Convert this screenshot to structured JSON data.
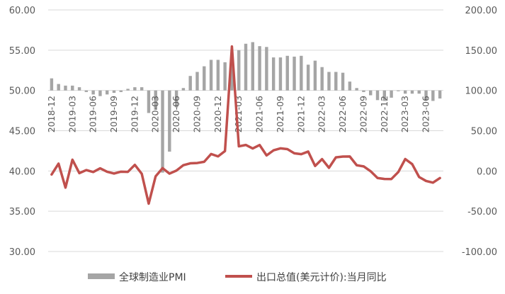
{
  "chart_data": {
    "type": "bar+line",
    "title": "",
    "left_axis": {
      "ylim": [
        30,
        60
      ],
      "ticks": [
        "30.00",
        "35.00",
        "40.00",
        "45.00",
        "50.00",
        "55.00",
        "60.00"
      ]
    },
    "right_axis": {
      "ylim": [
        -100,
        200
      ],
      "ticks": [
        "-100.00",
        "-50.00",
        "0.00",
        "50.00",
        "100.00",
        "150.00",
        "200.00"
      ]
    },
    "x_tick_labels": [
      "2018-12",
      "2019-03",
      "2019-06",
      "2019-09",
      "2019-12",
      "2020-03",
      "2020-06",
      "2020-09",
      "2020-12",
      "2021-03",
      "2021-06",
      "2021-09",
      "2021-12",
      "2022-03",
      "2022-06",
      "2022-09",
      "2022-12",
      "2023-03",
      "2023-06"
    ],
    "x": [
      "2018-12",
      "2019-01",
      "2019-02",
      "2019-03",
      "2019-04",
      "2019-05",
      "2019-06",
      "2019-07",
      "2019-08",
      "2019-09",
      "2019-10",
      "2019-11",
      "2019-12",
      "2020-01",
      "2020-02",
      "2020-03",
      "2020-04",
      "2020-05",
      "2020-06",
      "2020-07",
      "2020-08",
      "2020-09",
      "2020-10",
      "2020-11",
      "2020-12",
      "2021-01",
      "2021-02",
      "2021-03",
      "2021-04",
      "2021-05",
      "2021-06",
      "2021-07",
      "2021-08",
      "2021-09",
      "2021-10",
      "2021-11",
      "2021-12",
      "2022-01",
      "2022-02",
      "2022-03",
      "2022-04",
      "2022-05",
      "2022-06",
      "2022-07",
      "2022-08",
      "2022-09",
      "2022-10",
      "2022-11",
      "2022-12",
      "2023-01",
      "2023-02",
      "2023-03",
      "2023-04",
      "2023-05",
      "2023-06",
      "2023-07",
      "2023-08"
    ],
    "series": [
      {
        "name": "全球制造业PMI",
        "type": "bar",
        "axis": "left",
        "color": "#a5a5a5",
        "values": [
          51.5,
          50.8,
          50.6,
          50.6,
          50.4,
          49.8,
          49.5,
          49.3,
          49.5,
          49.7,
          49.8,
          50.2,
          50.4,
          50.4,
          47.2,
          47.6,
          39.8,
          42.4,
          47.9,
          50.3,
          51.8,
          52.3,
          53.0,
          53.8,
          53.8,
          53.5,
          53.9,
          55.0,
          55.8,
          56.0,
          55.5,
          55.4,
          54.1,
          54.1,
          54.3,
          54.2,
          54.3,
          53.2,
          53.7,
          52.9,
          52.3,
          52.3,
          52.2,
          51.1,
          50.3,
          49.8,
          49.4,
          48.8,
          48.7,
          49.1,
          49.9,
          49.6,
          49.6,
          49.6,
          48.8,
          48.7,
          49.0
        ]
      },
      {
        "name": "出口总值(美元计价):当月同比",
        "type": "line",
        "axis": "right",
        "color": "#c0504d",
        "values": [
          -4.4,
          9.1,
          -20.7,
          14.0,
          -2.7,
          1.1,
          -1.3,
          3.3,
          -1.0,
          -3.2,
          -0.9,
          -1.1,
          7.6,
          -3.5,
          -40.6,
          -6.6,
          3.5,
          -3.3,
          0.5,
          7.2,
          9.5,
          9.9,
          11.4,
          21.1,
          18.1,
          24.7,
          154.6,
          30.6,
          32.3,
          27.9,
          32.2,
          19.3,
          25.6,
          28.1,
          27.1,
          22.0,
          20.9,
          24.1,
          6.2,
          14.7,
          3.9,
          16.9,
          17.9,
          18.0,
          7.1,
          5.7,
          -0.3,
          -8.7,
          -9.9,
          -10.0,
          -1.3,
          14.8,
          8.5,
          -7.5,
          -12.4,
          -14.5,
          -8.8
        ]
      }
    ],
    "legend": {
      "position": "bottom",
      "entries": [
        "全球制造业PMI",
        "出口总值(美元计价):当月同比"
      ]
    },
    "grid": {
      "horizontal": true,
      "vertical": false,
      "color": "#d9d9d9"
    }
  }
}
